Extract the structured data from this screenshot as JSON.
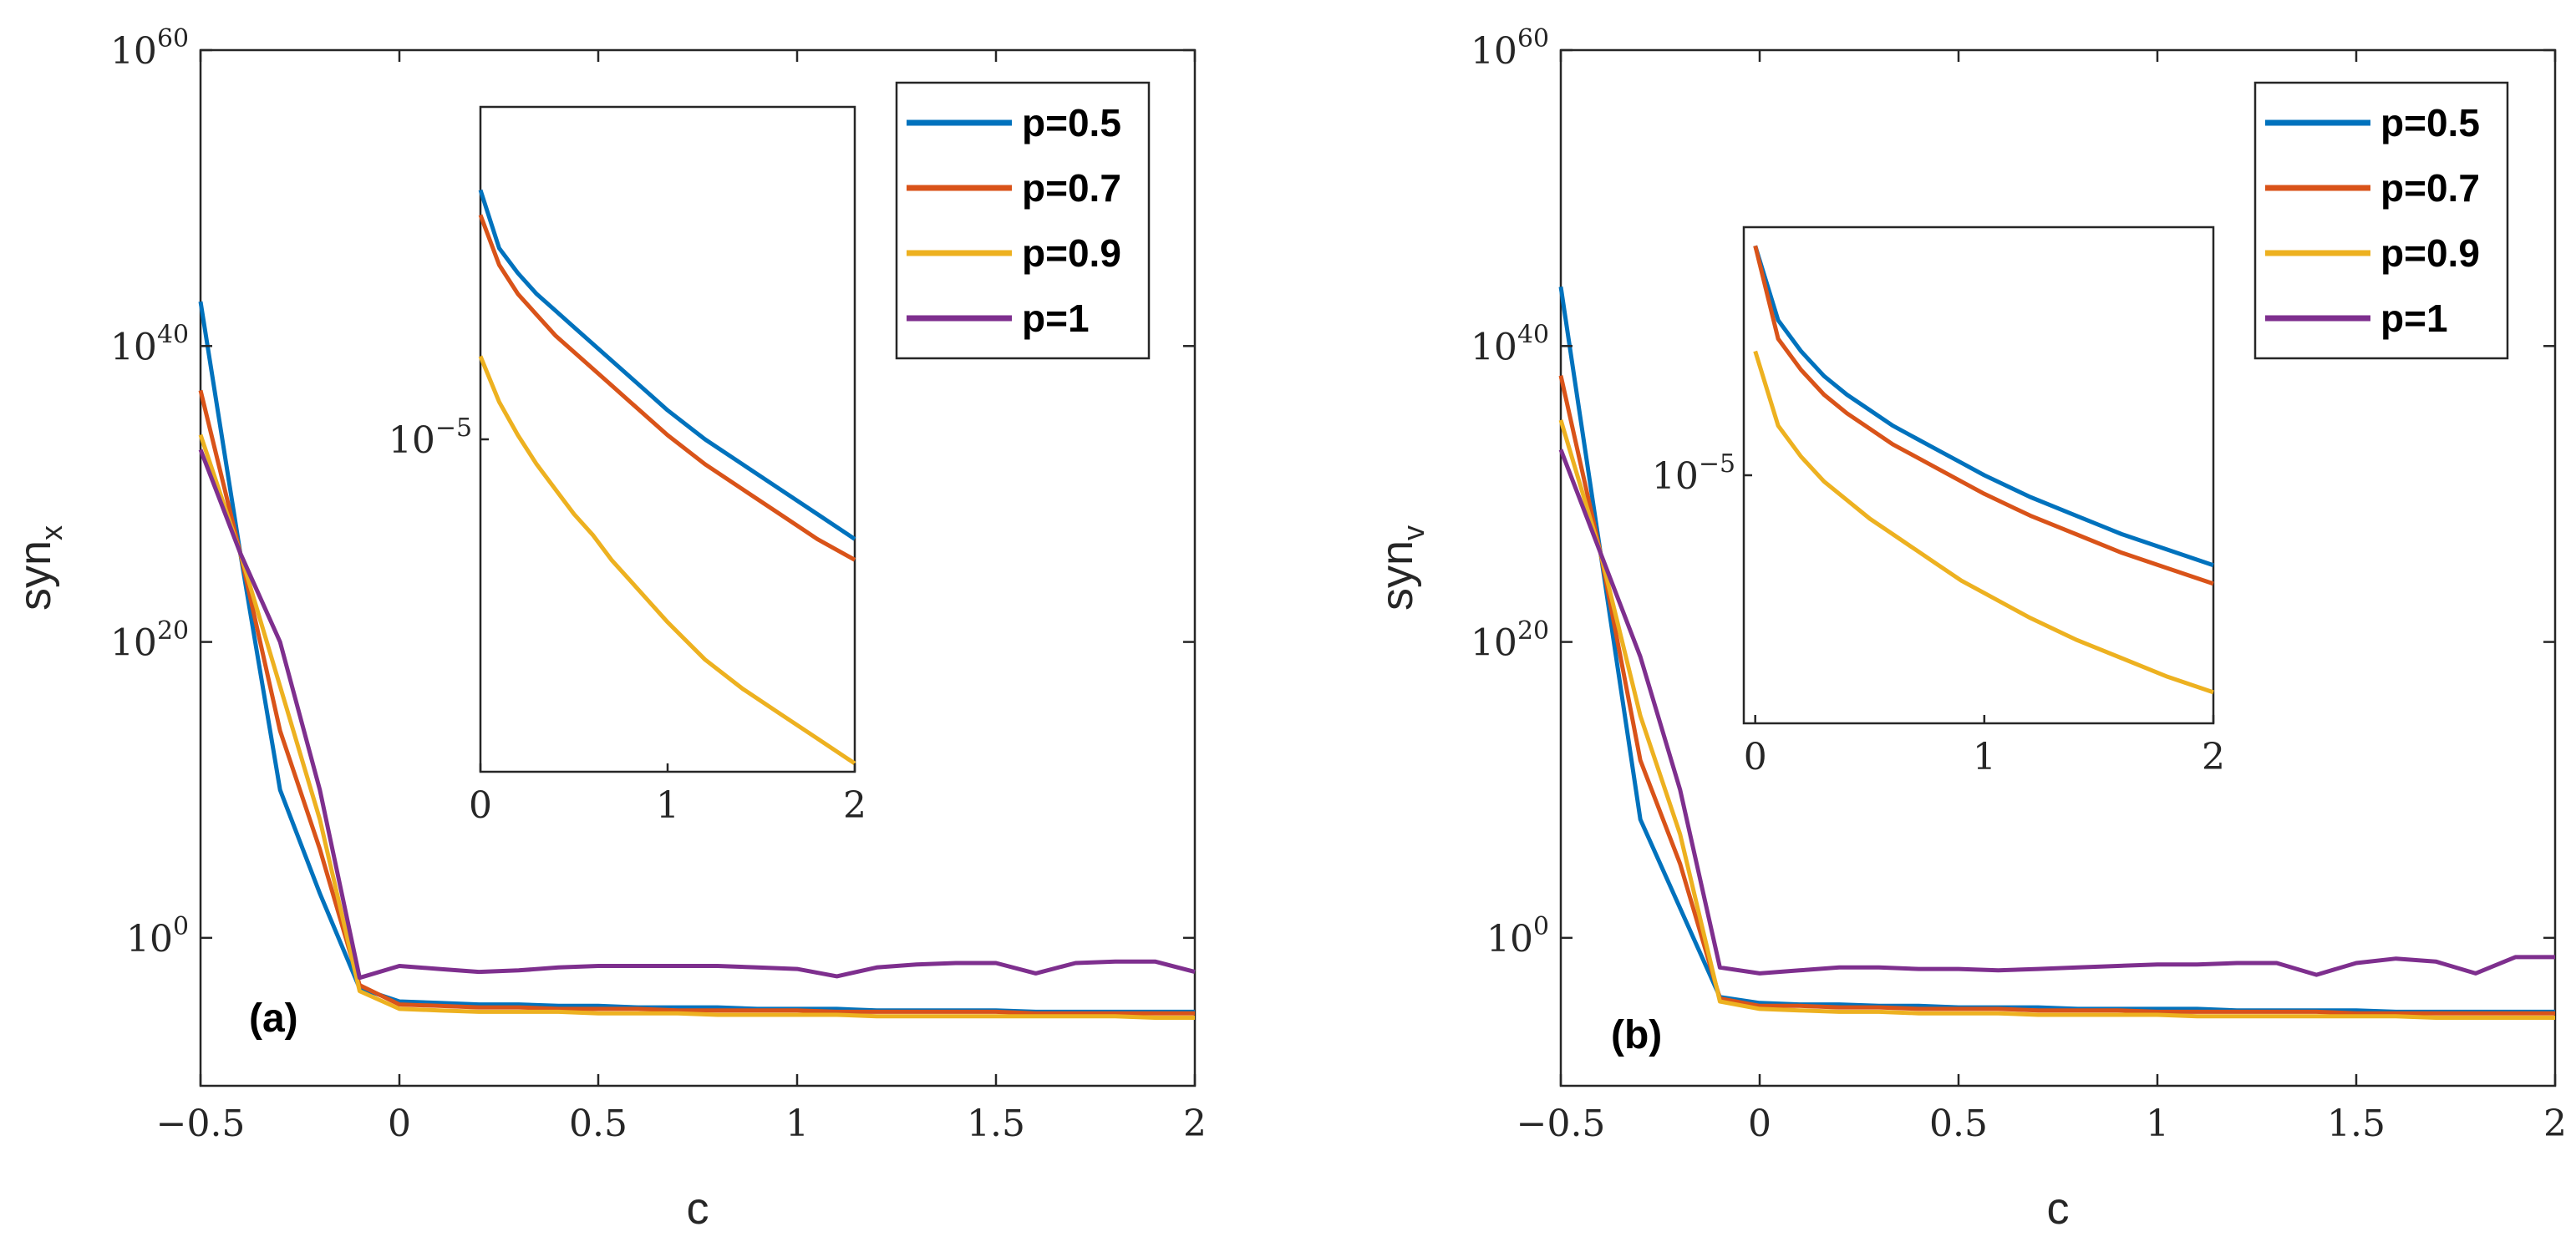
{
  "colors": {
    "p05": "#0072BD",
    "p07": "#D95319",
    "p09": "#EDB120",
    "p1": "#7E2F8E",
    "axis": "#262626"
  },
  "chart_data": [
    {
      "type": "line",
      "panel_label": "(a)",
      "xlabel": "c",
      "ylabel": "syn",
      "ylabel_subscript": "x",
      "xlim": [
        -0.5,
        2
      ],
      "ylim_log10": [
        -10,
        60
      ],
      "yscale": "log",
      "xticks": [
        "−0.5",
        "0",
        "0.5",
        "1",
        "1.5",
        "2"
      ],
      "yticks": [
        {
          "value_log10": 0,
          "base": "10",
          "exp": "0"
        },
        {
          "value_log10": 20,
          "base": "10",
          "exp": "20"
        },
        {
          "value_log10": 40,
          "base": "10",
          "exp": "40"
        },
        {
          "value_log10": 60,
          "base": "10",
          "exp": "60"
        }
      ],
      "legend": {
        "position": "top-right",
        "entries": [
          "p=0.5",
          "p=0.7",
          "p=0.9",
          "p=1"
        ]
      },
      "x": [
        -0.5,
        -0.4,
        -0.3,
        -0.2,
        -0.1,
        0,
        0.1,
        0.2,
        0.3,
        0.4,
        0.5,
        0.6,
        0.7,
        0.8,
        0.9,
        1,
        1.1,
        1.2,
        1.3,
        1.4,
        1.5,
        1.6,
        1.7,
        1.8,
        1.9,
        2
      ],
      "series": [
        {
          "name": "p=0.5",
          "log10_values": [
            43,
            26,
            10,
            3,
            -3.4,
            -4.3,
            -4.4,
            -4.5,
            -4.5,
            -4.6,
            -4.6,
            -4.7,
            -4.7,
            -4.7,
            -4.8,
            -4.8,
            -4.8,
            -4.9,
            -4.9,
            -4.9,
            -4.9,
            -5.0,
            -5.0,
            -5.0,
            -5.0,
            -5.0
          ]
        },
        {
          "name": "p=0.7",
          "log10_values": [
            37,
            26,
            14,
            6,
            -3.2,
            -4.5,
            -4.6,
            -4.7,
            -4.7,
            -4.8,
            -4.8,
            -4.8,
            -4.9,
            -4.9,
            -4.9,
            -4.9,
            -5.0,
            -5.0,
            -5.0,
            -5.0,
            -5.0,
            -5.1,
            -5.1,
            -5.1,
            -5.1,
            -5.1
          ]
        },
        {
          "name": "p=0.9",
          "log10_values": [
            34,
            26,
            17,
            8,
            -3.6,
            -4.8,
            -4.9,
            -5.0,
            -5.0,
            -5.0,
            -5.1,
            -5.1,
            -5.1,
            -5.2,
            -5.2,
            -5.2,
            -5.2,
            -5.3,
            -5.3,
            -5.3,
            -5.3,
            -5.3,
            -5.3,
            -5.3,
            -5.4,
            -5.4
          ]
        },
        {
          "name": "p=1",
          "log10_values": [
            33,
            26,
            20,
            10,
            -2.7,
            -1.9,
            -2.1,
            -2.3,
            -2.2,
            -2.0,
            -1.9,
            -1.9,
            -1.9,
            -1.9,
            -2.0,
            -2.1,
            -2.6,
            -2.0,
            -1.8,
            -1.7,
            -1.7,
            -2.4,
            -1.7,
            -1.6,
            -1.6,
            -2.3
          ]
        }
      ],
      "inset": {
        "xlim": [
          0,
          2
        ],
        "xticks": [
          "0",
          "1",
          "2"
        ],
        "ylim_log10": [
          -9,
          -1
        ],
        "ytick": {
          "value_log10": -5,
          "base": "10",
          "exp": "−5"
        },
        "x": [
          0,
          0.1,
          0.2,
          0.3,
          0.4,
          0.5,
          0.6,
          0.7,
          0.8,
          0.9,
          1.0,
          1.2,
          1.4,
          1.6,
          1.8,
          2.0
        ],
        "series": [
          {
            "name": "p=0.5",
            "log10_values": [
              -2.0,
              -2.7,
              -3.0,
              -3.25,
              -3.45,
              -3.65,
              -3.85,
              -4.05,
              -4.25,
              -4.45,
              -4.65,
              -5.0,
              -5.3,
              -5.6,
              -5.9,
              -6.2
            ]
          },
          {
            "name": "p=0.7",
            "log10_values": [
              -2.3,
              -2.9,
              -3.25,
              -3.5,
              -3.75,
              -3.95,
              -4.15,
              -4.35,
              -4.55,
              -4.75,
              -4.95,
              -5.3,
              -5.6,
              -5.9,
              -6.2,
              -6.45
            ]
          },
          {
            "name": "p=0.9",
            "log10_values": [
              -4.0,
              -4.55,
              -4.95,
              -5.3,
              -5.6,
              -5.9,
              -6.15,
              -6.45,
              -6.7,
              -6.95,
              -7.2,
              -7.65,
              -8.0,
              -8.3,
              -8.6,
              -8.9
            ]
          }
        ]
      }
    },
    {
      "type": "line",
      "panel_label": "(b)",
      "xlabel": "c",
      "ylabel": "syn",
      "ylabel_subscript": "v",
      "xlim": [
        -0.5,
        2
      ],
      "ylim_log10": [
        -10,
        60
      ],
      "yscale": "log",
      "xticks": [
        "−0.5",
        "0",
        "0.5",
        "1",
        "1.5",
        "2"
      ],
      "yticks": [
        {
          "value_log10": 0,
          "base": "10",
          "exp": "0"
        },
        {
          "value_log10": 20,
          "base": "10",
          "exp": "20"
        },
        {
          "value_log10": 40,
          "base": "10",
          "exp": "40"
        },
        {
          "value_log10": 60,
          "base": "10",
          "exp": "60"
        }
      ],
      "legend": {
        "position": "top-right",
        "entries": [
          "p=0.5",
          "p=0.7",
          "p=0.9",
          "p=1"
        ]
      },
      "x": [
        -0.5,
        -0.4,
        -0.3,
        -0.2,
        -0.1,
        0,
        0.1,
        0.2,
        0.3,
        0.4,
        0.5,
        0.6,
        0.7,
        0.8,
        0.9,
        1,
        1.1,
        1.2,
        1.3,
        1.4,
        1.5,
        1.6,
        1.7,
        1.8,
        1.9,
        2
      ],
      "series": [
        {
          "name": "p=0.5",
          "log10_values": [
            44,
            26,
            8,
            2,
            -4.0,
            -4.4,
            -4.5,
            -4.5,
            -4.6,
            -4.6,
            -4.7,
            -4.7,
            -4.7,
            -4.8,
            -4.8,
            -4.8,
            -4.8,
            -4.9,
            -4.9,
            -4.9,
            -4.9,
            -5.0,
            -5.0,
            -5.0,
            -5.0,
            -5.0
          ]
        },
        {
          "name": "p=0.7",
          "log10_values": [
            38,
            26,
            12,
            5,
            -4.1,
            -4.6,
            -4.6,
            -4.7,
            -4.7,
            -4.8,
            -4.8,
            -4.8,
            -4.9,
            -4.9,
            -4.9,
            -5.0,
            -5.0,
            -5.0,
            -5.0,
            -5.0,
            -5.1,
            -5.1,
            -5.1,
            -5.1,
            -5.1,
            -5.1
          ]
        },
        {
          "name": "p=0.9",
          "log10_values": [
            35,
            26,
            15,
            7,
            -4.3,
            -4.8,
            -4.9,
            -5.0,
            -5.0,
            -5.1,
            -5.1,
            -5.1,
            -5.2,
            -5.2,
            -5.2,
            -5.2,
            -5.3,
            -5.3,
            -5.3,
            -5.3,
            -5.3,
            -5.3,
            -5.4,
            -5.4,
            -5.4,
            -5.4
          ]
        },
        {
          "name": "p=1",
          "log10_values": [
            33,
            26,
            19,
            10,
            -2.0,
            -2.4,
            -2.2,
            -2.0,
            -2.0,
            -2.1,
            -2.1,
            -2.2,
            -2.1,
            -2.0,
            -1.9,
            -1.8,
            -1.8,
            -1.7,
            -1.7,
            -2.5,
            -1.7,
            -1.4,
            -1.6,
            -2.4,
            -1.3,
            -1.3
          ]
        }
      ],
      "inset": {
        "xlim": [
          -0.05,
          2
        ],
        "xticks": [
          "0",
          "1",
          "2"
        ],
        "ylim_log10": [
          -9,
          -1
        ],
        "ytick": {
          "value_log10": -5,
          "base": "10",
          "exp": "−5"
        },
        "x": [
          0,
          0.1,
          0.2,
          0.3,
          0.4,
          0.5,
          0.6,
          0.7,
          0.8,
          0.9,
          1.0,
          1.2,
          1.4,
          1.6,
          1.8,
          2.0
        ],
        "series": [
          {
            "name": "p=0.5",
            "log10_values": [
              -1.3,
              -2.5,
              -3.0,
              -3.4,
              -3.7,
              -3.95,
              -4.2,
              -4.4,
              -4.6,
              -4.8,
              -5.0,
              -5.35,
              -5.65,
              -5.95,
              -6.2,
              -6.45
            ]
          },
          {
            "name": "p=0.7",
            "log10_values": [
              -1.3,
              -2.8,
              -3.3,
              -3.7,
              -4.0,
              -4.25,
              -4.5,
              -4.7,
              -4.9,
              -5.1,
              -5.3,
              -5.65,
              -5.95,
              -6.25,
              -6.5,
              -6.75
            ]
          },
          {
            "name": "p=0.9",
            "log10_values": [
              -3.0,
              -4.2,
              -4.7,
              -5.1,
              -5.4,
              -5.7,
              -5.95,
              -6.2,
              -6.45,
              -6.7,
              -6.9,
              -7.3,
              -7.65,
              -7.95,
              -8.25,
              -8.5
            ]
          }
        ]
      }
    }
  ]
}
